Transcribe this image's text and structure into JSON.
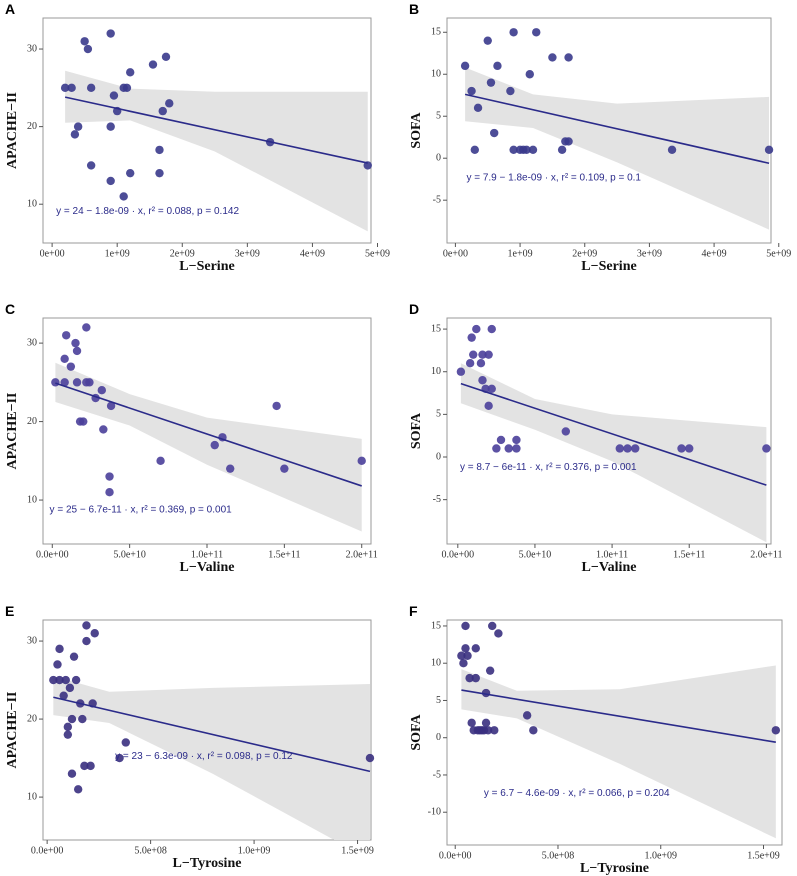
{
  "chart_data": [
    {
      "type": "scatter",
      "label": "A",
      "xlabel": "L−Serine",
      "ylabel": "APACHE−II",
      "annotation": "y = 24 − 1.8e-09 · x,  r² = 0.088,  p = 0.142",
      "color": "#3a3a8c",
      "fit_color": "#2b2b8a",
      "band_color": "#e3e3e3",
      "x": [
        200000000.0,
        300000000.0,
        500000000.0,
        550000000.0,
        600000000.0,
        350000000.0,
        400000000.0,
        600000000.0,
        900000000.0,
        950000000.0,
        1000000000.0,
        900000000.0,
        900000000.0,
        1100000000.0,
        1150000000.0,
        1100000000.0,
        1200000000.0,
        1200000000.0,
        1550000000.0,
        1650000000.0,
        1650000000.0,
        1700000000.0,
        1750000000.0,
        1800000000.0,
        3350000000.0,
        4850000000.0
      ],
      "y": [
        25,
        25,
        31,
        30,
        25,
        19,
        20,
        15,
        32,
        24,
        22,
        20,
        13,
        25,
        25,
        11,
        27,
        14,
        28,
        17,
        14,
        22,
        29,
        23,
        18,
        15
      ],
      "fit": {
        "x": [
          200000000.0,
          4850000000.0
        ],
        "y": [
          23.8,
          15.3
        ]
      },
      "band": {
        "x": [
          200000000.0,
          1200000000.0,
          2500000000.0,
          4850000000.0
        ],
        "lower": [
          20.5,
          20.8,
          16.8,
          6.5
        ],
        "upper": [
          27.2,
          24.9,
          24.5,
          24.5
        ]
      },
      "xlim": [
        -140000000.0,
        4900000000.0
      ],
      "ylim": [
        5,
        34
      ],
      "yticks": [
        10,
        20,
        30
      ],
      "xticks": [
        {
          "value": 0,
          "label": "0e+00"
        },
        {
          "value": 1000000000.0,
          "label": "1e+09"
        },
        {
          "value": 2000000000.0,
          "label": "2e+09"
        },
        {
          "value": 3000000000.0,
          "label": "3e+09"
        },
        {
          "value": 4000000000.0,
          "label": "4e+09"
        },
        {
          "value": 5000000000.0,
          "label": "5e+09"
        }
      ]
    },
    {
      "type": "scatter",
      "label": "B",
      "xlabel": "L−Serine",
      "ylabel": "SOFA",
      "annotation": "y = 7.9 − 1.8e-09 · x,  r² = 0.109,  p = 0.1",
      "color": "#3a3a8c",
      "fit_color": "#2b2b8a",
      "band_color": "#e3e3e3",
      "x": [
        150000000.0,
        250000000.0,
        300000000.0,
        350000000.0,
        500000000.0,
        550000000.0,
        600000000.0,
        650000000.0,
        850000000.0,
        900000000.0,
        900000000.0,
        1000000000.0,
        1050000000.0,
        1100000000.0,
        1150000000.0,
        1200000000.0,
        1250000000.0,
        1500000000.0,
        1650000000.0,
        1700000000.0,
        1750000000.0,
        1750000000.0,
        3350000000.0,
        4850000000.0
      ],
      "y": [
        11,
        8,
        1,
        6,
        14,
        9,
        3,
        11,
        8,
        15,
        1,
        1,
        1,
        1,
        10,
        1,
        15,
        12,
        1,
        2,
        12,
        2,
        1,
        1
      ],
      "fit": {
        "x": [
          150000000.0,
          4850000000.0
        ],
        "y": [
          7.6,
          -0.6
        ]
      },
      "band": {
        "x": [
          150000000.0,
          1200000000.0,
          2500000000.0,
          4850000000.0
        ],
        "lower": [
          4.4,
          3.6,
          -0.5,
          -8.5
        ],
        "upper": [
          10.8,
          7.6,
          6.5,
          7.3
        ]
      },
      "xlim": [
        -130000000.0,
        4880000000.0
      ],
      "ylim": [
        -10.1,
        16.7
      ],
      "yticks": [
        -5,
        0,
        5,
        10,
        15
      ],
      "xticks": [
        {
          "value": 0,
          "label": "0e+00"
        },
        {
          "value": 1000000000.0,
          "label": "1e+09"
        },
        {
          "value": 2000000000.0,
          "label": "2e+09"
        },
        {
          "value": 3000000000.0,
          "label": "3e+09"
        },
        {
          "value": 4000000000.0,
          "label": "4e+09"
        },
        {
          "value": 5000000000.0,
          "label": "5e+09"
        }
      ]
    },
    {
      "type": "scatter",
      "label": "C",
      "xlabel": "L−Valine",
      "ylabel": "APACHE−II",
      "annotation": "y = 25 − 6.7e-11 · x,  r² = 0.369,  p = 0.001",
      "color": "#4a3f9a",
      "fit_color": "#2b2b8a",
      "band_color": "#e3e3e3",
      "x": [
        2000000000.0,
        8000000000.0,
        9000000000.0,
        8000000000.0,
        12000000000.0,
        15000000000.0,
        16000000000.0,
        16000000000.0,
        18000000000.0,
        20000000000.0,
        22000000000.0,
        22000000000.0,
        24000000000.0,
        28000000000.0,
        32000000000.0,
        33000000000.0,
        38000000000.0,
        37000000000.0,
        37000000000.0,
        70000000000.0,
        105000000000.0,
        110000000000.0,
        115000000000.0,
        145000000000.0,
        150000000000.0,
        200000000000.0
      ],
      "y": [
        25,
        25,
        31,
        28,
        27,
        30,
        29,
        25,
        20,
        20,
        25,
        32,
        25,
        23,
        24,
        19,
        22,
        13,
        11,
        15,
        17,
        18,
        14,
        22,
        14,
        15
      ],
      "fit": {
        "x": [
          2000000000.0,
          200000000000.0
        ],
        "y": [
          24.9,
          11.8
        ]
      },
      "band": {
        "x": [
          2000000000.0,
          50000000000.0,
          100000000000.0,
          200000000000.0
        ],
        "lower": [
          22.5,
          19.5,
          14.5,
          6
        ],
        "upper": [
          27.5,
          23.5,
          20.5,
          17.8
        ]
      },
      "xlim": [
        -6000000000.0,
        206000000000.0
      ],
      "ylim": [
        4.4,
        33.2
      ],
      "yticks": [
        10,
        20,
        30
      ],
      "xticks": [
        {
          "value": 0,
          "label": "0.0e+00"
        },
        {
          "value": 50000000000.0,
          "label": "5.0e+10"
        },
        {
          "value": 100000000000.0,
          "label": "1.0e+11"
        },
        {
          "value": 150000000000.0,
          "label": "1.5e+11"
        },
        {
          "value": 200000000000.0,
          "label": "2.0e+11"
        }
      ]
    },
    {
      "type": "scatter",
      "label": "D",
      "xlabel": "L−Valine",
      "ylabel": "SOFA",
      "annotation": "y = 8.7 − 6e-11 · x,  r² = 0.376,  p = 0.001",
      "color": "#4a3f9a",
      "fit_color": "#2b2b8a",
      "band_color": "#e3e3e3",
      "x": [
        2000000000.0,
        8000000000.0,
        9000000000.0,
        10000000000.0,
        12000000000.0,
        15000000000.0,
        16000000000.0,
        16000000000.0,
        18000000000.0,
        20000000000.0,
        20000000000.0,
        22000000000.0,
        22000000000.0,
        25000000000.0,
        28000000000.0,
        33000000000.0,
        38000000000.0,
        38000000000.0,
        70000000000.0,
        105000000000.0,
        110000000000.0,
        115000000000.0,
        145000000000.0,
        150000000000.0,
        200000000000.0
      ],
      "y": [
        10,
        11,
        14,
        12,
        15,
        11,
        12,
        9,
        8,
        6,
        12,
        15,
        8,
        1,
        2,
        1,
        2,
        1,
        3,
        1,
        1,
        1,
        1,
        1,
        1
      ],
      "fit": {
        "x": [
          2000000000.0,
          200000000000.0
        ],
        "y": [
          8.6,
          -3.3
        ]
      },
      "band": {
        "x": [
          2000000000.0,
          50000000000.0,
          100000000000.0,
          200000000000.0
        ],
        "lower": [
          6.3,
          3.2,
          -0.5,
          -10
        ],
        "upper": [
          11,
          6.8,
          5,
          3.5
        ]
      },
      "xlim": [
        -7000000000.0,
        203000000000.0
      ],
      "ylim": [
        -10.2,
        16.3
      ],
      "yticks": [
        -5,
        0,
        5,
        10,
        15
      ],
      "xticks": [
        {
          "value": 0,
          "label": "0.0e+00"
        },
        {
          "value": 50000000000.0,
          "label": "5.0e+10"
        },
        {
          "value": 100000000000.0,
          "label": "1.0e+11"
        },
        {
          "value": 150000000000.0,
          "label": "1.5e+11"
        },
        {
          "value": 200000000000.0,
          "label": "2.0e+11"
        }
      ]
    },
    {
      "type": "scatter",
      "label": "E",
      "xlabel": "L−Tyrosine",
      "ylabel": "APACHE−II",
      "annotation": "y = 23 − 6.3e-09 · x,  r² = 0.098,  p = 0.12",
      "color": "#3a3080",
      "fit_color": "#2b2b8a",
      "band_color": "#e3e3e3",
      "x": [
        30000000.0,
        50000000.0,
        60000000.0,
        60000000.0,
        80000000.0,
        90000000.0,
        100000000.0,
        100000000.0,
        110000000.0,
        120000000.0,
        120000000.0,
        130000000.0,
        140000000.0,
        150000000.0,
        160000000.0,
        170000000.0,
        180000000.0,
        190000000.0,
        190000000.0,
        210000000.0,
        220000000.0,
        230000000.0,
        350000000.0,
        380000000.0,
        1560000000.0
      ],
      "y": [
        25,
        27,
        29,
        25,
        23,
        25,
        19,
        18,
        24,
        20,
        13,
        28,
        25,
        11,
        22,
        20,
        14,
        32,
        30,
        14,
        22,
        31,
        15,
        17,
        15
      ],
      "fit": {
        "x": [
          30000000.0,
          1560000000.0
        ],
        "y": [
          22.8,
          13.3
        ]
      },
      "band": {
        "x": [
          30000000.0,
          300000000.0,
          800000000.0,
          1560000000.0
        ],
        "lower": [
          20.5,
          19.5,
          13,
          2
        ],
        "upper": [
          25.5,
          23.5,
          24,
          24.5
        ]
      },
      "xlim": [
        -20000000.0,
        1565000000.0
      ],
      "ylim": [
        4.5,
        32.7
      ],
      "yticks": [
        10,
        20,
        30
      ],
      "xticks": [
        {
          "value": 0,
          "label": "0.0e+00"
        },
        {
          "value": 500000000.0,
          "label": "5.0e+08"
        },
        {
          "value": 1000000000.0,
          "label": "1.0e+09"
        },
        {
          "value": 1500000000.0,
          "label": "1.5e+09"
        }
      ]
    },
    {
      "type": "scatter",
      "label": "F",
      "xlabel": "L−Tyrosine",
      "ylabel": "SOFA",
      "annotation": "y = 6.7 − 4.6e-09 · x,  r² = 0.066,  p = 0.204",
      "color": "#3a3080",
      "fit_color": "#2b2b8a",
      "band_color": "#e3e3e3",
      "x": [
        30000000.0,
        40000000.0,
        50000000.0,
        50000000.0,
        60000000.0,
        70000000.0,
        80000000.0,
        90000000.0,
        100000000.0,
        100000000.0,
        110000000.0,
        120000000.0,
        130000000.0,
        140000000.0,
        150000000.0,
        150000000.0,
        160000000.0,
        170000000.0,
        180000000.0,
        190000000.0,
        210000000.0,
        350000000.0,
        380000000.0,
        1560000000.0
      ],
      "y": [
        11,
        10,
        15,
        12,
        11,
        8,
        2,
        1,
        12,
        8,
        1,
        1,
        1,
        1,
        6,
        2,
        1,
        9,
        15,
        1,
        14,
        3,
        1,
        1
      ],
      "fit": {
        "x": [
          30000000.0,
          1560000000.0
        ],
        "y": [
          6.4,
          -0.6
        ]
      },
      "band": {
        "x": [
          30000000.0,
          300000000.0,
          800000000.0,
          1560000000.0
        ],
        "lower": [
          3.8,
          2.6,
          -3.5,
          -13.5
        ],
        "upper": [
          9.2,
          6.3,
          6.5,
          9.7
        ]
      },
      "xlim": [
        -40000000.0,
        1590000000.0
      ],
      "ylim": [
        -14.4,
        15.8
      ],
      "yticks": [
        -10,
        -5,
        0,
        5,
        10,
        15
      ],
      "xticks": [
        {
          "value": 0,
          "label": "0.0e+00"
        },
        {
          "value": 500000000.0,
          "label": "5.0e+08"
        },
        {
          "value": 1000000000.0,
          "label": "1.0e+09"
        },
        {
          "value": 1500000000.0,
          "label": "1.5e+09"
        }
      ]
    }
  ]
}
